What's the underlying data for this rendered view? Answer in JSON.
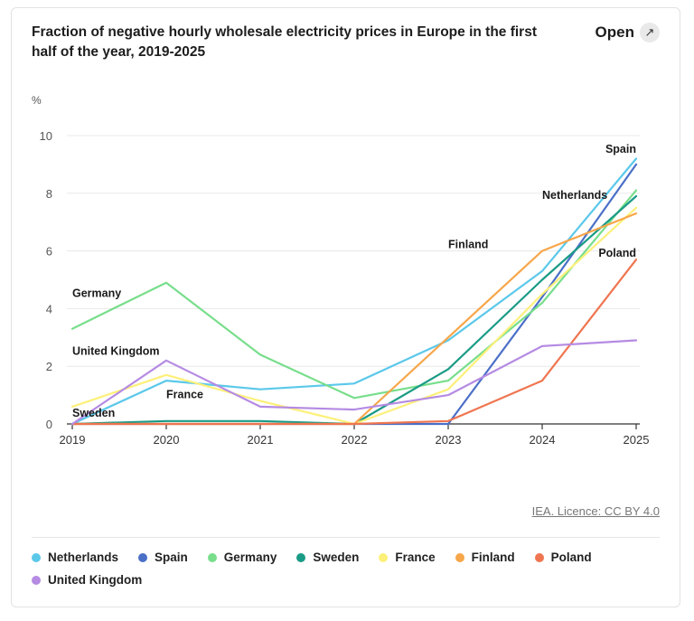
{
  "header": {
    "title": "Fraction of negative hourly wholesale electricity prices in Europe in the first half of the year, 2019-2025",
    "open_label": "Open",
    "open_icon": "expand-arrows-icon"
  },
  "source_link": "IEA. Licence: CC BY 4.0",
  "chart_data": {
    "type": "line",
    "ylabel": "%",
    "xlabel": "",
    "ylim": [
      0,
      10
    ],
    "yticks": [
      "0",
      "2",
      "4",
      "6",
      "8",
      "10"
    ],
    "x": [
      "2019",
      "2020",
      "2021",
      "2022",
      "2023",
      "2024",
      "2025"
    ],
    "grid": true,
    "legend_position": "bottom",
    "series": [
      {
        "name": "Netherlands",
        "color": "#5bc8ea",
        "values": [
          0,
          1.5,
          1.2,
          1.4,
          2.9,
          5.3,
          9.2
        ]
      },
      {
        "name": "Spain",
        "color": "#4a6fc7",
        "values": [
          0,
          0,
          0,
          0,
          0,
          4.4,
          9.0
        ]
      },
      {
        "name": "Germany",
        "color": "#78de8c",
        "values": [
          3.3,
          4.9,
          2.4,
          0.9,
          1.5,
          4.2,
          8.1
        ]
      },
      {
        "name": "Sweden",
        "color": "#1a9b86",
        "values": [
          0,
          0.1,
          0.1,
          0,
          1.9,
          5.0,
          7.9
        ]
      },
      {
        "name": "France",
        "color": "#fdf07a",
        "values": [
          0.6,
          1.7,
          0.8,
          0,
          1.2,
          4.5,
          7.5
        ]
      },
      {
        "name": "Finland",
        "color": "#f7a64a",
        "values": [
          0,
          0,
          0,
          0,
          3.0,
          6.0,
          7.3
        ]
      },
      {
        "name": "Poland",
        "color": "#ef7550",
        "values": [
          0,
          0,
          0,
          0,
          0.1,
          1.5,
          5.7
        ]
      },
      {
        "name": "United Kingdom",
        "color": "#b58be3",
        "values": [
          0,
          2.2,
          0.6,
          0.5,
          1.0,
          2.7,
          2.9
        ]
      }
    ],
    "annotations": [
      {
        "text": "Spain",
        "x": "2025",
        "y": 9.4,
        "anchor": "end"
      },
      {
        "text": "Netherlands",
        "x": "2024",
        "y": 7.8,
        "anchor": "start"
      },
      {
        "text": "Finland",
        "x": "2023",
        "y": 6.1,
        "anchor": "start"
      },
      {
        "text": "Poland",
        "x": "2025",
        "y": 5.8,
        "anchor": "end"
      },
      {
        "text": "Germany",
        "x": "2019",
        "y": 4.4,
        "anchor": "start"
      },
      {
        "text": "United Kingdom",
        "x": "2019",
        "y": 2.4,
        "anchor": "start"
      },
      {
        "text": "France",
        "x": "2020",
        "y": 0.9,
        "anchor": "start"
      },
      {
        "text": "Sweden",
        "x": "2019",
        "y": 0.25,
        "anchor": "start"
      }
    ]
  }
}
